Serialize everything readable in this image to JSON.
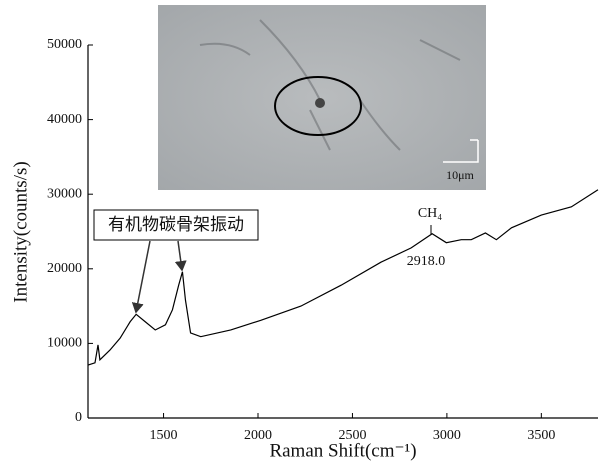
{
  "chart_data": {
    "type": "line",
    "x_label": "Raman Shift(cm⁻¹)",
    "y_label": "Intensity(counts/s)",
    "x": [
      1100,
      1137,
      1153,
      1163,
      1216,
      1270,
      1323,
      1355,
      1403,
      1456,
      1510,
      1547,
      1580,
      1600,
      1616,
      1643,
      1697,
      1856,
      2015,
      2227,
      2440,
      2652,
      2811,
      2922,
      2997,
      3076,
      3129,
      3204,
      3262,
      3342,
      3500,
      3659,
      3800
    ],
    "series": [
      {
        "color": "#000000",
        "values": [
          7100,
          7400,
          9800,
          7800,
          9100,
          10700,
          12900,
          13900,
          12900,
          11800,
          12500,
          14500,
          17800,
          19600,
          15800,
          11400,
          10900,
          11800,
          13100,
          15000,
          17800,
          20900,
          22800,
          24700,
          23500,
          23900,
          23900,
          24800,
          23900,
          25500,
          27200,
          28300,
          30600
        ]
      }
    ],
    "xlim": [
      1100,
      3800
    ],
    "ylim": [
      0,
      50000
    ],
    "xticks": [
      1500,
      2000,
      2500,
      3000,
      3500
    ],
    "yticks": [
      0,
      10000,
      20000,
      30000,
      40000,
      50000
    ],
    "grid": false,
    "annotations": [
      {
        "text": "有机物碳骨架振动"
      },
      {
        "text": "CH₄"
      },
      {
        "text": "2918.0"
      }
    ],
    "inset_scale_label": "10μm"
  }
}
